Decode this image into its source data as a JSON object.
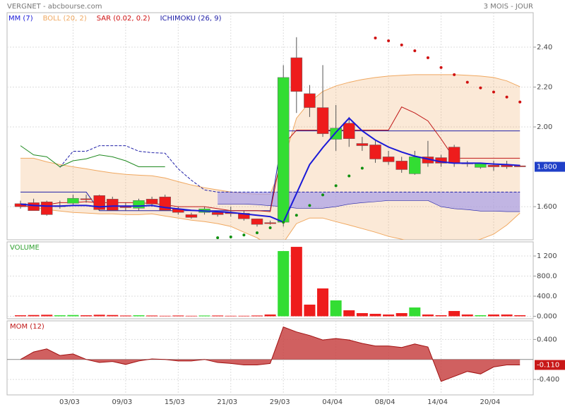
{
  "header": {
    "title": "VERGNET - abcbourse.com",
    "period": "3 MOIS - JOUR"
  },
  "chart_data": [
    {
      "type": "candlestick",
      "categories": [
        null,
        null,
        null,
        null,
        "03/03",
        null,
        null,
        null,
        "09/03",
        null,
        null,
        null,
        "15/03",
        null,
        null,
        null,
        "21/03",
        null,
        null,
        null,
        "29/03",
        null,
        null,
        null,
        "04/04",
        null,
        null,
        null,
        "08/04",
        null,
        null,
        null,
        "14/04",
        null,
        null,
        null,
        "20/04",
        null,
        null
      ],
      "up_color": "#33dd33",
      "down_color": "#ee1c1c",
      "open": [
        1.615,
        1.62,
        1.624,
        1.6,
        1.617,
        1.64,
        1.656,
        1.638,
        1.6,
        1.592,
        1.638,
        1.649,
        1.589,
        1.56,
        1.571,
        1.571,
        1.57,
        1.567,
        1.539,
        1.52,
        1.522,
        2.347,
        2.167,
        2.097,
        1.938,
        2.019,
        1.917,
        1.91,
        1.85,
        1.829,
        1.765,
        1.85,
        1.846,
        1.899,
        1.818,
        1.797,
        1.808,
        1.808,
        1.805
      ],
      "high": [
        1.63,
        1.64,
        1.63,
        1.63,
        1.66,
        1.66,
        1.66,
        1.65,
        1.62,
        1.64,
        1.65,
        1.66,
        1.6,
        1.57,
        1.6,
        1.58,
        1.6,
        1.58,
        1.54,
        1.53,
        2.31,
        2.45,
        2.21,
        2.31,
        2.11,
        2.05,
        1.95,
        1.93,
        1.88,
        1.85,
        1.88,
        1.93,
        1.86,
        1.91,
        1.83,
        1.82,
        1.83,
        1.83,
        1.81
      ],
      "low": [
        1.59,
        1.59,
        1.555,
        1.59,
        1.61,
        1.62,
        1.58,
        1.58,
        1.58,
        1.58,
        1.6,
        1.58,
        1.56,
        1.54,
        1.56,
        1.55,
        1.55,
        1.53,
        1.5,
        1.51,
        1.5,
        2.07,
        2.05,
        1.95,
        1.88,
        1.9,
        1.88,
        1.82,
        1.81,
        1.77,
        1.76,
        1.8,
        1.8,
        1.8,
        1.8,
        1.79,
        1.78,
        1.79,
        1.8
      ],
      "close": [
        1.6,
        1.58,
        1.56,
        1.605,
        1.642,
        1.635,
        1.585,
        1.582,
        1.595,
        1.631,
        1.613,
        1.582,
        1.571,
        1.546,
        1.589,
        1.56,
        1.565,
        1.539,
        1.511,
        1.515,
        2.248,
        2.178,
        2.097,
        1.966,
        1.994,
        1.941,
        1.906,
        1.839,
        1.825,
        1.786,
        1.85,
        1.818,
        1.818,
        1.818,
        1.815,
        1.818,
        1.8,
        1.8,
        1.8
      ],
      "series": [
        {
          "name": "MM (7)",
          "type": "line",
          "color": "#1a1ad8",
          "values": [
            1.613,
            1.606,
            1.603,
            1.603,
            1.606,
            1.606,
            1.599,
            1.603,
            1.603,
            1.603,
            1.606,
            1.596,
            1.589,
            1.582,
            1.578,
            1.575,
            1.571,
            1.564,
            1.557,
            1.55,
            1.522,
            1.666,
            1.811,
            1.896,
            1.973,
            2.044,
            1.98,
            1.934,
            1.899,
            1.874,
            1.853,
            1.839,
            1.825,
            1.818,
            1.818,
            1.818,
            1.814,
            1.811,
            1.807
          ]
        },
        {
          "name": "BOLL (20, 2)",
          "type": "band",
          "color": "#f0a860",
          "upper": [
            1.843,
            1.843,
            1.825,
            1.811,
            1.8,
            1.79,
            1.779,
            1.769,
            1.762,
            1.758,
            1.755,
            1.744,
            1.726,
            1.709,
            1.695,
            1.684,
            1.674,
            1.666,
            1.663,
            1.663,
            1.825,
            2.044,
            2.125,
            2.178,
            2.206,
            2.224,
            2.238,
            2.248,
            2.255,
            2.259,
            2.262,
            2.262,
            2.262,
            2.262,
            2.259,
            2.255,
            2.248,
            2.231,
            2.202
          ],
          "lower": [
            1.606,
            1.596,
            1.585,
            1.578,
            1.571,
            1.568,
            1.564,
            1.564,
            1.56,
            1.56,
            1.564,
            1.553,
            1.543,
            1.532,
            1.525,
            1.515,
            1.501,
            1.472,
            1.444,
            1.402,
            1.419,
            1.515,
            1.543,
            1.543,
            1.525,
            1.508,
            1.49,
            1.472,
            1.451,
            1.437,
            1.419,
            1.402,
            1.384,
            1.402,
            1.419,
            1.437,
            1.462,
            1.508,
            1.568
          ]
        },
        {
          "name": "SAR (0.02, 0.2)",
          "type": "dots",
          "color": "#d01010",
          "alt_color": "#109010",
          "values": [
            null,
            null,
            null,
            null,
            null,
            null,
            null,
            null,
            null,
            null,
            null,
            null,
            null,
            null,
            null,
            1.444,
            1.448,
            1.458,
            1.469,
            1.494,
            1.522,
            1.557,
            1.606,
            1.659,
            1.705,
            1.754,
            1.793,
            2.446,
            2.432,
            2.411,
            2.382,
            2.347,
            2.298,
            2.262,
            2.224,
            2.196,
            2.175,
            2.15,
            2.125
          ]
        },
        {
          "name": "ICHIMOKU (26, 9)",
          "type": "ichimoku",
          "color": "#2020a8",
          "tenkan_color": "#c01818",
          "chikou_color": "#208a20",
          "cloud_color": "#a89ee8",
          "tenkan": [
            1.6,
            1.603,
            1.61,
            1.62,
            1.62,
            1.625,
            1.62,
            1.62,
            1.62,
            1.62,
            1.615,
            1.61,
            1.6,
            1.6,
            1.6,
            1.59,
            1.58,
            1.58,
            1.58,
            1.575,
            1.91,
            1.984,
            1.984,
            1.984,
            1.984,
            1.984,
            1.984,
            1.984,
            1.984,
            2.1,
            2.07,
            2.03,
            1.94,
            1.843,
            1.843,
            1.843,
            1.843,
            1.843,
            1.843
          ],
          "kijun": [
            1.673,
            1.673,
            1.673,
            1.673,
            1.673,
            1.673,
            1.58,
            1.58,
            1.58,
            1.58,
            1.58,
            1.58,
            1.58,
            1.58,
            1.58,
            1.58,
            1.58,
            1.58,
            1.58,
            1.58,
            1.98,
            1.98,
            1.98,
            1.98,
            1.98,
            1.98,
            1.98,
            1.98,
            1.98,
            1.98,
            1.98,
            1.98,
            1.98,
            1.98,
            1.98,
            1.98,
            1.98,
            1.98,
            1.98
          ],
          "chikou": [
            1.906,
            1.86,
            1.85,
            1.8,
            1.83,
            1.84,
            1.86,
            1.85,
            1.83,
            1.8,
            1.8,
            1.8,
            null,
            null,
            null,
            null,
            null,
            null,
            null,
            null,
            null,
            null,
            null,
            null,
            null,
            null,
            null,
            null,
            null,
            null,
            null,
            null,
            null,
            null,
            null,
            null,
            null,
            null,
            null
          ],
          "span_a": [
            null,
            null,
            null,
            1.797,
            1.878,
            1.878,
            1.906,
            1.906,
            1.906,
            1.878,
            1.871,
            1.868,
            1.79,
            1.733,
            1.684,
            1.673,
            1.673,
            1.673,
            1.673,
            1.673,
            1.673,
            1.673,
            1.673,
            1.673,
            1.673,
            1.673,
            1.673,
            1.673,
            1.673,
            1.673,
            1.673,
            1.673,
            1.673,
            1.673,
            1.673,
            1.673,
            1.673,
            1.673,
            1.673
          ],
          "span_b": [
            null,
            null,
            null,
            null,
            null,
            null,
            null,
            null,
            null,
            null,
            null,
            null,
            null,
            null,
            null,
            1.613,
            1.613,
            1.613,
            1.61,
            1.605,
            1.6,
            1.592,
            1.592,
            1.592,
            1.6,
            1.613,
            1.62,
            1.625,
            1.631,
            1.631,
            1.631,
            1.631,
            1.6,
            1.59,
            1.585,
            1.578,
            1.578,
            1.575,
            1.575
          ]
        }
      ],
      "ylim": [
        1.434,
        2.573
      ],
      "yticks": [
        {
          "value": 1.6,
          "label": "1.600"
        },
        {
          "value": 2.0,
          "label": "2.00"
        },
        {
          "value": 2.2,
          "label": "2.20"
        },
        {
          "value": 2.4,
          "label": "2.40"
        }
      ],
      "price_tag": {
        "value": 1.8,
        "label": "1.800"
      },
      "tag_color": "#2040c8",
      "grid": true
    },
    {
      "type": "bar",
      "title": "VOLUME",
      "title_color": "#30a030",
      "values": [
        20,
        25,
        30,
        20,
        25,
        20,
        30,
        25,
        15,
        20,
        15,
        10,
        15,
        10,
        15,
        15,
        10,
        10,
        15,
        35,
        1298,
        1382,
        232,
        554,
        316,
        119,
        63,
        49,
        35,
        63,
        175,
        35,
        21,
        105,
        35,
        21,
        35,
        35,
        21
      ],
      "ylim": [
        -49,
        1481
      ],
      "yticks": [
        {
          "value": 0,
          "label": "0.000"
        },
        {
          "value": 400,
          "label": "400.0"
        },
        {
          "value": 800,
          "label": "800.0"
        },
        {
          "value": 1200,
          "label": "1 200"
        }
      ],
      "grid": true
    },
    {
      "type": "area",
      "title": "MOM (12)",
      "title_color": "#c01818",
      "color": "#c84444",
      "values": [
        0,
        0.15,
        0.21,
        0.08,
        0.11,
        0,
        -0.06,
        -0.04,
        -0.1,
        -0.03,
        0.01,
        0,
        -0.03,
        -0.03,
        0,
        -0.06,
        -0.08,
        -0.11,
        -0.11,
        -0.08,
        0.65,
        0.55,
        0.48,
        0.39,
        0.42,
        0.39,
        0.32,
        0.27,
        0.27,
        0.24,
        0.31,
        0.25,
        -0.44,
        -0.34,
        -0.24,
        -0.29,
        -0.15,
        -0.11,
        -0.11
      ],
      "ylim": [
        -0.709,
        0.772
      ],
      "yticks": [
        {
          "value": -0.4,
          "label": "-0.400"
        },
        {
          "value": 0.4,
          "label": "0.400"
        }
      ],
      "price_tag": {
        "value": -0.11,
        "label": "-0.110"
      },
      "tag_color": "#c81818",
      "grid": true
    }
  ]
}
